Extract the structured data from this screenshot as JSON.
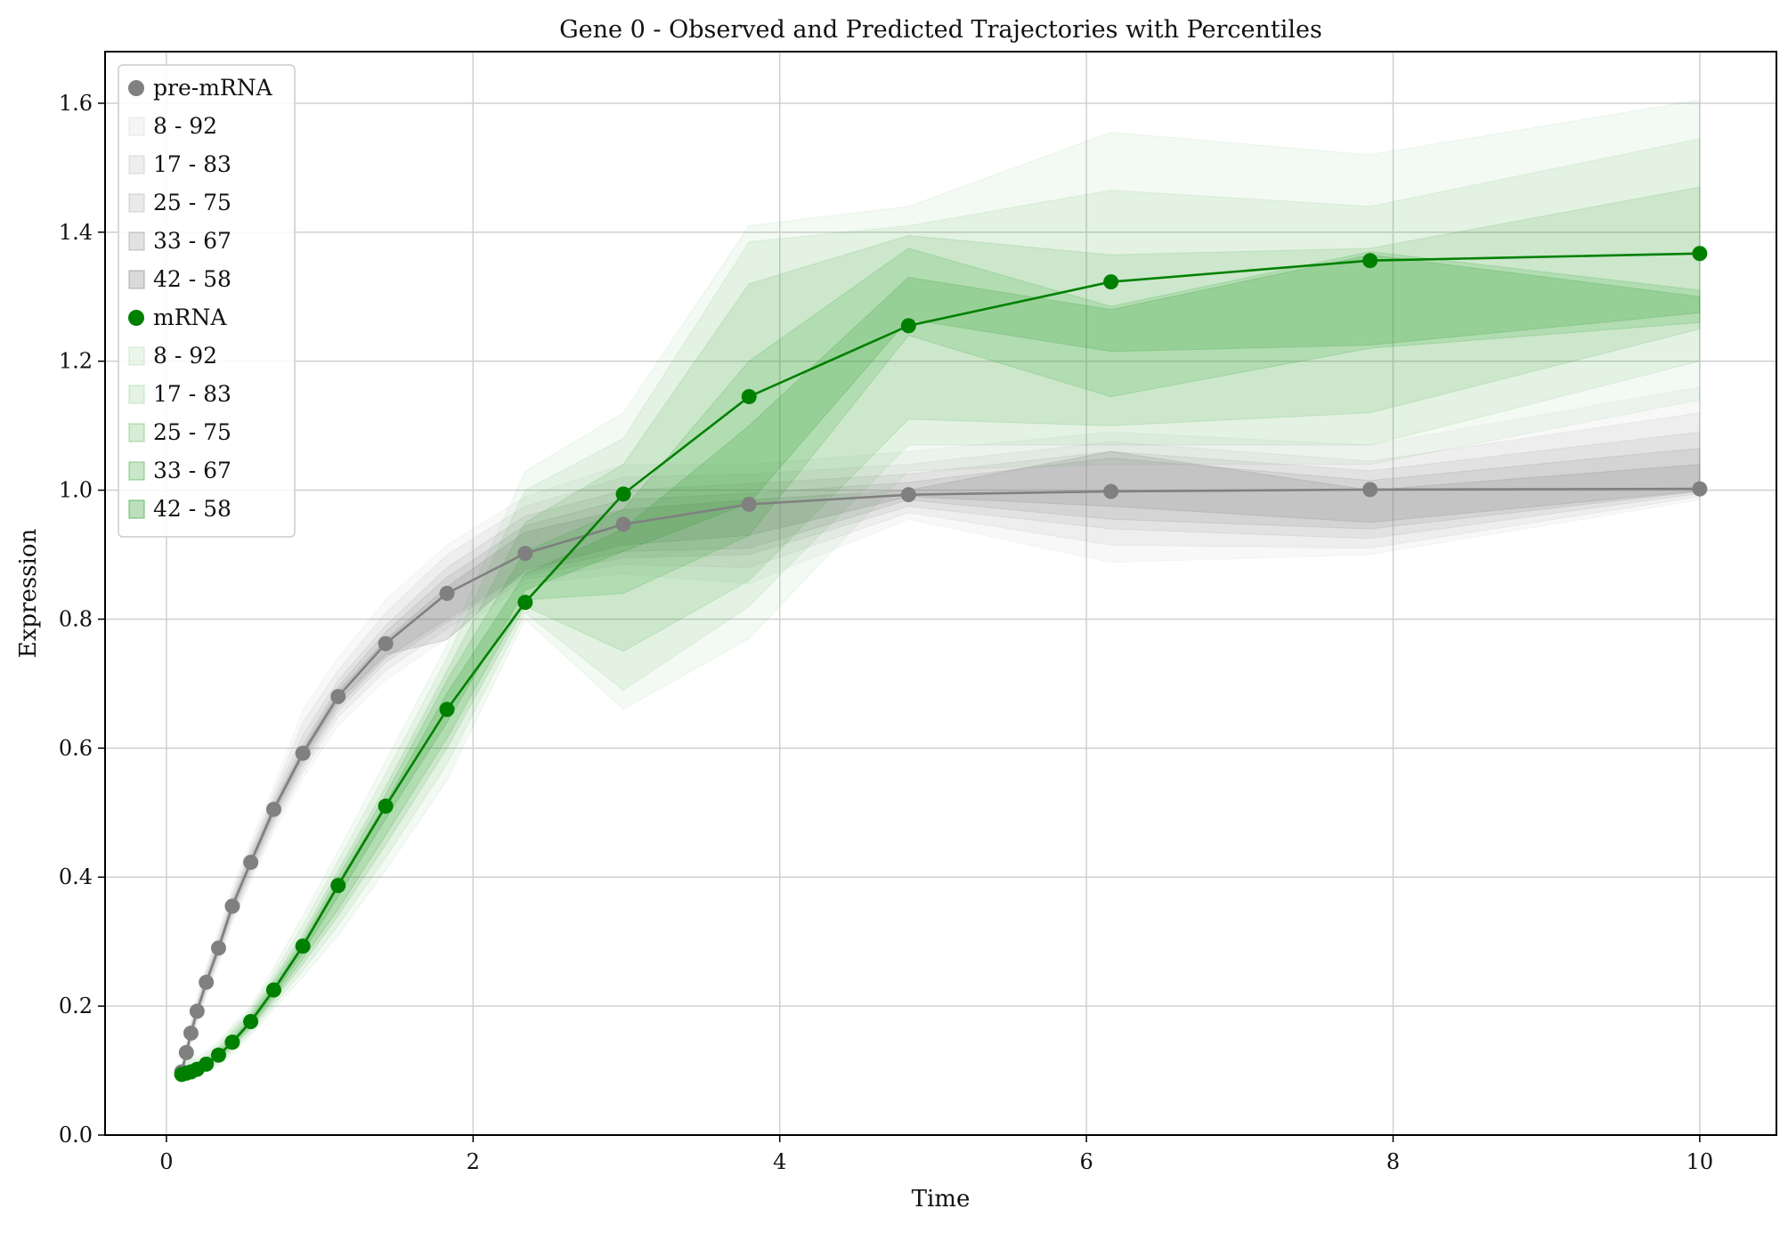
{
  "chart_data": {
    "type": "line",
    "title": "Gene 0 - Observed and Predicted Trajectories with Percentiles",
    "xlabel": "Time",
    "ylabel": "Expression",
    "xlim": [
      -0.4,
      10.5
    ],
    "ylim": [
      0.0,
      1.68
    ],
    "xticks": [
      0,
      2,
      4,
      6,
      8,
      10
    ],
    "yticks": [
      0.0,
      0.2,
      0.4,
      0.6,
      0.8,
      1.0,
      1.2,
      1.4,
      1.6
    ],
    "xtick_labels": [
      "0",
      "2",
      "4",
      "6",
      "8",
      "10"
    ],
    "ytick_labels": [
      "0.0",
      "0.2",
      "0.4",
      "0.6",
      "0.8",
      "1.0",
      "1.2",
      "1.4",
      "1.6"
    ],
    "grid": true,
    "legend_position": "upper-left",
    "band_levels": [
      "8 - 92",
      "17 - 83",
      "25 - 75",
      "33 - 67",
      "42 - 58"
    ],
    "series": [
      {
        "name": "pre-mRNA",
        "color": "#808080",
        "band_color": "#7f7f7f",
        "band_opacities": [
          0.05,
          0.08,
          0.1,
          0.14,
          0.18
        ],
        "x": [
          0.1,
          0.13,
          0.16,
          0.2,
          0.26,
          0.34,
          0.43,
          0.55,
          0.7,
          0.89,
          1.12,
          1.43,
          1.83,
          2.34,
          2.98,
          3.8,
          4.84,
          6.16,
          7.85,
          10.0
        ],
        "y": [
          0.098,
          0.128,
          0.158,
          0.192,
          0.237,
          0.29,
          0.355,
          0.423,
          0.505,
          0.592,
          0.68,
          0.762,
          0.84,
          0.902,
          0.947,
          0.978,
          0.993,
          0.998,
          1.001,
          1.002
        ],
        "bands": [
          {
            "level": "8 - 92",
            "lower": [
              0.085,
              0.112,
              0.14,
              0.172,
              0.215,
              0.265,
              0.328,
              0.392,
              0.47,
              0.552,
              0.635,
              0.705,
              0.77,
              0.855,
              0.87,
              0.855,
              0.955,
              0.888,
              0.9,
              0.985
            ],
            "upper": [
              0.112,
              0.145,
              0.178,
              0.215,
              0.262,
              0.318,
              0.385,
              0.456,
              0.54,
              0.66,
              0.74,
              0.83,
              0.915,
              0.99,
              1.04,
              1.04,
              1.06,
              1.09,
              1.07,
              1.16
            ]
          },
          {
            "level": "17 - 83",
            "lower": [
              0.088,
              0.116,
              0.145,
              0.177,
              0.22,
              0.271,
              0.334,
              0.399,
              0.478,
              0.562,
              0.648,
              0.72,
              0.785,
              0.862,
              0.885,
              0.88,
              0.965,
              0.915,
              0.91,
              0.99
            ],
            "upper": [
              0.108,
              0.14,
              0.172,
              0.209,
              0.256,
              0.311,
              0.377,
              0.447,
              0.53,
              0.64,
              0.72,
              0.81,
              0.9,
              0.975,
              1.02,
              1.025,
              1.04,
              1.075,
              1.045,
              1.12
            ]
          },
          {
            "level": "25 - 75",
            "lower": [
              0.091,
              0.119,
              0.149,
              0.181,
              0.225,
              0.277,
              0.34,
              0.406,
              0.485,
              0.57,
              0.658,
              0.733,
              0.795,
              0.868,
              0.895,
              0.9,
              0.975,
              0.94,
              0.925,
              0.995
            ],
            "upper": [
              0.105,
              0.136,
              0.167,
              0.203,
              0.25,
              0.304,
              0.37,
              0.44,
              0.522,
              0.62,
              0.705,
              0.79,
              0.88,
              0.96,
              1.0,
              1.01,
              1.025,
              1.06,
              1.03,
              1.09
            ]
          },
          {
            "level": "33 - 67",
            "lower": [
              0.094,
              0.123,
              0.153,
              0.185,
              0.229,
              0.282,
              0.345,
              0.412,
              0.492,
              0.578,
              0.665,
              0.74,
              0.8,
              0.872,
              0.905,
              0.91,
              0.985,
              0.955,
              0.94,
              0.998
            ],
            "upper": [
              0.102,
              0.133,
              0.163,
              0.198,
              0.245,
              0.298,
              0.364,
              0.434,
              0.515,
              0.605,
              0.695,
              0.78,
              0.865,
              0.945,
              0.985,
              0.995,
              1.012,
              1.05,
              1.015,
              1.065
            ]
          },
          {
            "level": "42 - 58",
            "lower": [
              0.096,
              0.126,
              0.156,
              0.189,
              0.233,
              0.286,
              0.35,
              0.418,
              0.498,
              0.585,
              0.672,
              0.745,
              0.768,
              0.876,
              0.915,
              0.93,
              0.99,
              0.975,
              0.95,
              0.999
            ],
            "upper": [
              0.1,
              0.13,
              0.16,
              0.195,
              0.241,
              0.294,
              0.36,
              0.428,
              0.51,
              0.598,
              0.688,
              0.768,
              0.85,
              0.935,
              0.97,
              0.985,
              1.0,
              1.06,
              1.0,
              1.04
            ]
          }
        ]
      },
      {
        "name": "mRNA",
        "color": "#008000",
        "band_color": "#2ca02c",
        "band_opacities": [
          0.06,
          0.08,
          0.12,
          0.16,
          0.2
        ],
        "x": [
          0.1,
          0.13,
          0.16,
          0.2,
          0.26,
          0.34,
          0.43,
          0.55,
          0.7,
          0.89,
          1.12,
          1.43,
          1.83,
          2.34,
          2.98,
          3.8,
          4.84,
          6.16,
          7.85,
          10.0
        ],
        "y": [
          0.094,
          0.096,
          0.098,
          0.102,
          0.11,
          0.124,
          0.144,
          0.176,
          0.225,
          0.293,
          0.387,
          0.51,
          0.66,
          0.826,
          0.994,
          1.145,
          1.255,
          1.323,
          1.356,
          1.367
        ],
        "bands": [
          {
            "level": "8 - 92",
            "lower": [
              0.085,
              0.087,
              0.09,
              0.093,
              0.1,
              0.108,
              0.125,
              0.155,
              0.195,
              0.245,
              0.31,
              0.41,
              0.55,
              0.8,
              0.66,
              0.77,
              1.03,
              1.04,
              1.04,
              1.14
            ],
            "upper": [
              0.11,
              0.115,
              0.13,
              0.12,
              0.13,
              0.145,
              0.17,
              0.2,
              0.26,
              0.34,
              0.44,
              0.58,
              0.76,
              1.03,
              1.12,
              1.41,
              1.44,
              1.555,
              1.52,
              1.605
            ]
          },
          {
            "level": "17 - 83",
            "lower": [
              0.087,
              0.089,
              0.092,
              0.095,
              0.102,
              0.112,
              0.13,
              0.16,
              0.202,
              0.255,
              0.325,
              0.43,
              0.575,
              0.81,
              0.69,
              0.82,
              1.07,
              1.07,
              1.07,
              1.2
            ],
            "upper": [
              0.105,
              0.11,
              0.12,
              0.115,
              0.125,
              0.14,
              0.165,
              0.195,
              0.25,
              0.325,
              0.425,
              0.56,
              0.74,
              1.0,
              1.08,
              1.385,
              1.41,
              1.465,
              1.44,
              1.545
            ]
          },
          {
            "level": "25 - 75",
            "lower": [
              0.089,
              0.091,
              0.094,
              0.097,
              0.104,
              0.115,
              0.135,
              0.165,
              0.208,
              0.265,
              0.34,
              0.45,
              0.6,
              0.82,
              0.75,
              0.86,
              1.11,
              1.1,
              1.12,
              1.25
            ],
            "upper": [
              0.101,
              0.105,
              0.11,
              0.112,
              0.12,
              0.135,
              0.16,
              0.19,
              0.242,
              0.312,
              0.41,
              0.54,
              0.72,
              0.95,
              1.04,
              1.32,
              1.395,
              1.365,
              1.375,
              1.47
            ]
          },
          {
            "level": "33 - 67",
            "lower": [
              0.091,
              0.093,
              0.096,
              0.099,
              0.106,
              0.118,
              0.138,
              0.168,
              0.213,
              0.273,
              0.35,
              0.465,
              0.615,
              0.83,
              0.84,
              0.93,
              1.24,
              1.145,
              1.22,
              1.26
            ],
            "upper": [
              0.098,
              0.1,
              0.103,
              0.108,
              0.116,
              0.13,
              0.153,
              0.185,
              0.236,
              0.304,
              0.4,
              0.528,
              0.705,
              0.905,
              0.97,
              1.2,
              1.375,
              1.285,
              1.37,
              1.31
            ]
          },
          {
            "level": "42 - 58",
            "lower": [
              0.093,
              0.095,
              0.098,
              0.101,
              0.108,
              0.121,
              0.141,
              0.172,
              0.218,
              0.283,
              0.37,
              0.49,
              0.64,
              0.845,
              0.905,
              0.98,
              1.265,
              1.215,
              1.225,
              1.275
            ],
            "upper": [
              0.096,
              0.098,
              0.101,
              0.105,
              0.113,
              0.127,
              0.148,
              0.181,
              0.23,
              0.298,
              0.392,
              0.515,
              0.685,
              0.87,
              0.94,
              1.1,
              1.33,
              1.28,
              1.365,
              1.3
            ]
          }
        ]
      }
    ]
  }
}
